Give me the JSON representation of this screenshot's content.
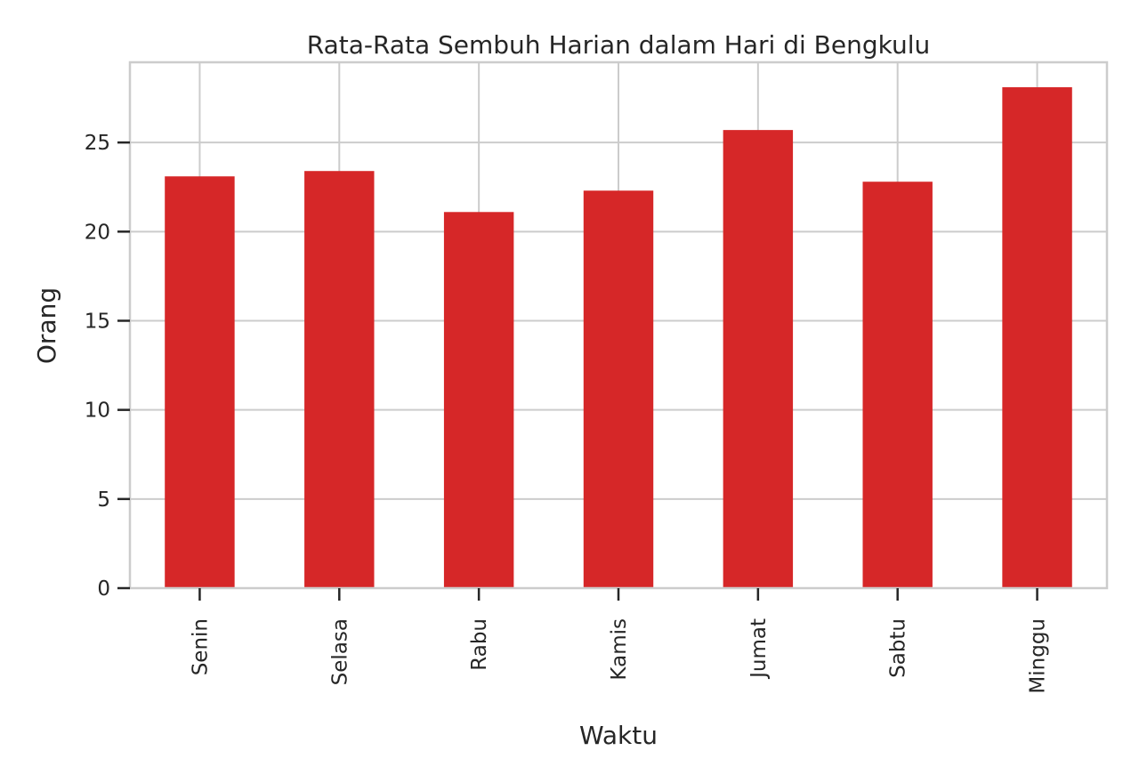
{
  "chart_data": {
    "type": "bar",
    "title": "Rata-Rata Sembuh Harian dalam Hari di Bengkulu",
    "xlabel": "Waktu",
    "ylabel": "Orang",
    "categories": [
      "Senin",
      "Selasa",
      "Rabu",
      "Kamis",
      "Jumat",
      "Sabtu",
      "Minggu"
    ],
    "values": [
      23.1,
      23.4,
      21.1,
      22.3,
      25.7,
      22.8,
      28.1
    ],
    "ylim": [
      0,
      29.5
    ],
    "yticks": [
      0,
      5,
      10,
      15,
      20,
      25
    ],
    "grid": true,
    "bar_color": "#d62728",
    "grid_color": "#cccccc",
    "text_color": "#262626"
  }
}
